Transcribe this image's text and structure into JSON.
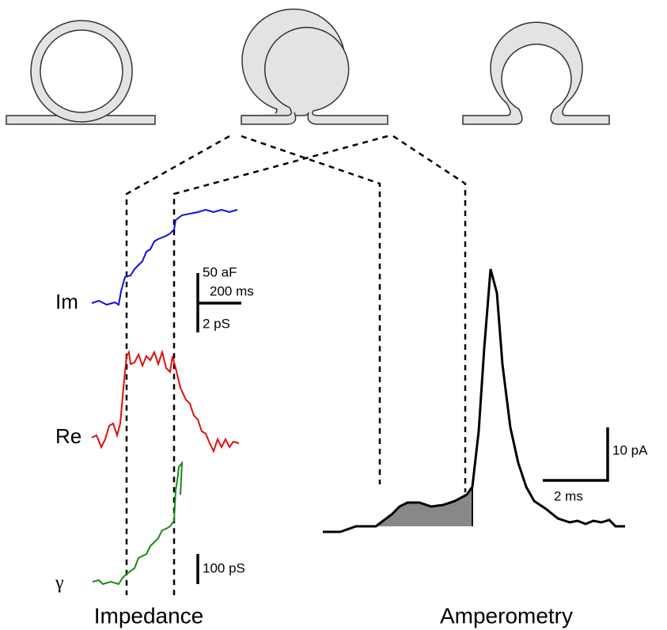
{
  "traces": {
    "im": "Im",
    "re": "Re",
    "gamma": "γ"
  },
  "scale_bars": {
    "capacitance": "50 aF",
    "time_impedance": "200 ms",
    "conductance": "2 pS",
    "gamma": "100 pS",
    "current": "10 pA",
    "time_amperometry": "2 ms"
  },
  "panels": {
    "impedance": "Impedance",
    "amperometry": "Amperometry"
  }
}
